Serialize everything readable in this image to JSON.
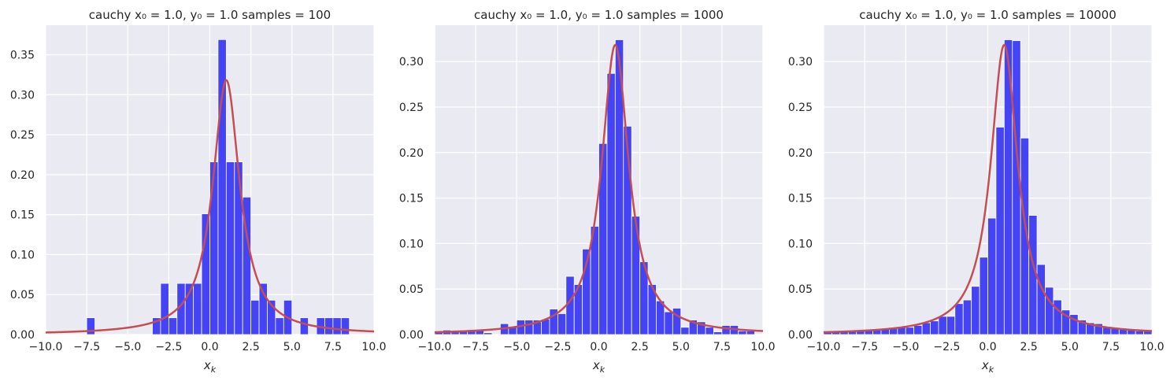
{
  "figure": {
    "background": "#ffffff",
    "axes_background": "#EAEAF2",
    "grid_color": "#ffffff",
    "bar_color": "#4444F5",
    "curve_color": "#C44E52"
  },
  "chart_data": [
    {
      "type": "bar",
      "title": "cauchy x₀ = 1.0, y₀ = 1.0  samples = 100",
      "xlabel": "x_k",
      "ylabel": "",
      "xlim": [
        -10,
        10
      ],
      "ylim": [
        0,
        0.387
      ],
      "grid": true,
      "xticks": [
        "−10.0",
        "−7.5",
        "−5.0",
        "−2.5",
        "0.0",
        "2.5",
        "5.0",
        "7.5",
        "10.0"
      ],
      "xtick_values": [
        -10,
        -7.5,
        -5,
        -2.5,
        0,
        2.5,
        5,
        7.5,
        10
      ],
      "yticks": [
        "0.00",
        "0.05",
        "0.10",
        "0.15",
        "0.20",
        "0.25",
        "0.30",
        "0.35"
      ],
      "ytick_values": [
        0,
        0.05,
        0.1,
        0.15,
        0.2,
        0.25,
        0.3,
        0.35
      ],
      "bin_width": 0.5,
      "bins": [
        {
          "x": -7.5,
          "y": 0.021
        },
        {
          "x": -3.5,
          "y": 0.021
        },
        {
          "x": -3.0,
          "y": 0.064
        },
        {
          "x": -2.5,
          "y": 0.021
        },
        {
          "x": -2.0,
          "y": 0.064
        },
        {
          "x": -1.5,
          "y": 0.064
        },
        {
          "x": -1.0,
          "y": 0.064
        },
        {
          "x": -0.5,
          "y": 0.151
        },
        {
          "x": 0.0,
          "y": 0.216
        },
        {
          "x": 0.5,
          "y": 0.369
        },
        {
          "x": 1.0,
          "y": 0.216
        },
        {
          "x": 1.5,
          "y": 0.216
        },
        {
          "x": 2.0,
          "y": 0.172
        },
        {
          "x": 2.5,
          "y": 0.043
        },
        {
          "x": 3.0,
          "y": 0.064
        },
        {
          "x": 3.5,
          "y": 0.043
        },
        {
          "x": 4.0,
          "y": 0.021
        },
        {
          "x": 4.5,
          "y": 0.043
        },
        {
          "x": 5.5,
          "y": 0.021
        },
        {
          "x": 6.5,
          "y": 0.021
        },
        {
          "x": 7.0,
          "y": 0.021
        },
        {
          "x": 7.5,
          "y": 0.021
        },
        {
          "x": 8.0,
          "y": 0.021
        }
      ],
      "curve": {
        "type": "cauchy_pdf",
        "x0": 1.0,
        "gamma": 1.0
      }
    },
    {
      "type": "bar",
      "title": "cauchy x₀ = 1.0, y₀ = 1.0  samples = 1000",
      "xlabel": "x_k",
      "ylabel": "",
      "xlim": [
        -10,
        10
      ],
      "ylim": [
        0,
        0.34
      ],
      "grid": true,
      "xticks": [
        "−10.0",
        "−7.5",
        "−5.0",
        "−2.5",
        "0.0",
        "2.5",
        "5.0",
        "7.5",
        "10.0"
      ],
      "xtick_values": [
        -10,
        -7.5,
        -5,
        -2.5,
        0,
        2.5,
        5,
        7.5,
        10
      ],
      "yticks": [
        "0.00",
        "0.05",
        "0.10",
        "0.15",
        "0.20",
        "0.25",
        "0.30"
      ],
      "ytick_values": [
        0,
        0.05,
        0.1,
        0.15,
        0.2,
        0.25,
        0.3
      ],
      "bin_width": 0.5,
      "bins": [
        {
          "x": -10.0,
          "y": 0.003
        },
        {
          "x": -9.5,
          "y": 0.005
        },
        {
          "x": -9.0,
          "y": 0.003
        },
        {
          "x": -8.5,
          "y": 0.005
        },
        {
          "x": -8.0,
          "y": 0.004
        },
        {
          "x": -7.5,
          "y": 0.005
        },
        {
          "x": -7.0,
          "y": 0.002
        },
        {
          "x": -6.0,
          "y": 0.012
        },
        {
          "x": -5.5,
          "y": 0.008
        },
        {
          "x": -5.0,
          "y": 0.016
        },
        {
          "x": -4.5,
          "y": 0.016
        },
        {
          "x": -4.0,
          "y": 0.016
        },
        {
          "x": -3.5,
          "y": 0.017
        },
        {
          "x": -3.0,
          "y": 0.028
        },
        {
          "x": -2.5,
          "y": 0.023
        },
        {
          "x": -2.0,
          "y": 0.064
        },
        {
          "x": -1.5,
          "y": 0.055
        },
        {
          "x": -1.0,
          "y": 0.094
        },
        {
          "x": -0.5,
          "y": 0.119
        },
        {
          "x": 0.0,
          "y": 0.21
        },
        {
          "x": 0.5,
          "y": 0.287
        },
        {
          "x": 1.0,
          "y": 0.324
        },
        {
          "x": 1.5,
          "y": 0.229
        },
        {
          "x": 2.0,
          "y": 0.13
        },
        {
          "x": 2.5,
          "y": 0.08
        },
        {
          "x": 3.0,
          "y": 0.055
        },
        {
          "x": 3.5,
          "y": 0.037
        },
        {
          "x": 4.0,
          "y": 0.025
        },
        {
          "x": 4.5,
          "y": 0.029
        },
        {
          "x": 5.0,
          "y": 0.008
        },
        {
          "x": 5.5,
          "y": 0.016
        },
        {
          "x": 6.0,
          "y": 0.014
        },
        {
          "x": 6.5,
          "y": 0.008
        },
        {
          "x": 7.0,
          "y": 0.003
        },
        {
          "x": 7.5,
          "y": 0.01
        },
        {
          "x": 8.0,
          "y": 0.01
        },
        {
          "x": 8.5,
          "y": 0.004
        },
        {
          "x": 9.0,
          "y": 0.004
        }
      ],
      "curve": {
        "type": "cauchy_pdf",
        "x0": 1.0,
        "gamma": 1.0
      }
    },
    {
      "type": "bar",
      "title": "cauchy x₀ = 1.0, y₀ = 1.0  samples = 10000",
      "xlabel": "x_k",
      "ylabel": "",
      "xlim": [
        -10,
        10
      ],
      "ylim": [
        0,
        0.34
      ],
      "grid": true,
      "xticks": [
        "−10.0",
        "−7.5",
        "−5.0",
        "−2.5",
        "0.0",
        "2.5",
        "5.0",
        "7.5",
        "10.0"
      ],
      "xtick_values": [
        -10,
        -7.5,
        -5,
        -2.5,
        0,
        2.5,
        5,
        7.5,
        10
      ],
      "yticks": [
        "0.00",
        "0.05",
        "0.10",
        "0.15",
        "0.20",
        "0.25",
        "0.30"
      ],
      "ytick_values": [
        0,
        0.05,
        0.1,
        0.15,
        0.2,
        0.25,
        0.3
      ],
      "bin_width": 0.5,
      "bins": [
        {
          "x": -10.0,
          "y": 0.003
        },
        {
          "x": -9.5,
          "y": 0.003
        },
        {
          "x": -9.0,
          "y": 0.003
        },
        {
          "x": -8.5,
          "y": 0.004
        },
        {
          "x": -8.0,
          "y": 0.004
        },
        {
          "x": -7.5,
          "y": 0.005
        },
        {
          "x": -7.0,
          "y": 0.005
        },
        {
          "x": -6.5,
          "y": 0.006
        },
        {
          "x": -6.0,
          "y": 0.007
        },
        {
          "x": -5.5,
          "y": 0.009
        },
        {
          "x": -5.0,
          "y": 0.008
        },
        {
          "x": -4.5,
          "y": 0.01
        },
        {
          "x": -4.0,
          "y": 0.013
        },
        {
          "x": -3.5,
          "y": 0.015
        },
        {
          "x": -3.0,
          "y": 0.02
        },
        {
          "x": -2.5,
          "y": 0.02
        },
        {
          "x": -2.0,
          "y": 0.034
        },
        {
          "x": -1.5,
          "y": 0.038
        },
        {
          "x": -1.0,
          "y": 0.053
        },
        {
          "x": -0.5,
          "y": 0.085
        },
        {
          "x": 0.0,
          "y": 0.128
        },
        {
          "x": 0.5,
          "y": 0.228
        },
        {
          "x": 1.0,
          "y": 0.324
        },
        {
          "x": 1.5,
          "y": 0.323
        },
        {
          "x": 2.0,
          "y": 0.216
        },
        {
          "x": 2.5,
          "y": 0.131
        },
        {
          "x": 3.0,
          "y": 0.077
        },
        {
          "x": 3.5,
          "y": 0.052
        },
        {
          "x": 4.0,
          "y": 0.038
        },
        {
          "x": 4.5,
          "y": 0.027
        },
        {
          "x": 5.0,
          "y": 0.022
        },
        {
          "x": 5.5,
          "y": 0.016
        },
        {
          "x": 6.0,
          "y": 0.013
        },
        {
          "x": 6.5,
          "y": 0.012
        },
        {
          "x": 7.0,
          "y": 0.009
        },
        {
          "x": 7.5,
          "y": 0.007
        },
        {
          "x": 8.0,
          "y": 0.007
        },
        {
          "x": 8.5,
          "y": 0.006
        },
        {
          "x": 9.0,
          "y": 0.004
        },
        {
          "x": 9.5,
          "y": 0.004
        }
      ],
      "curve": {
        "type": "cauchy_pdf",
        "x0": 1.0,
        "gamma": 1.0
      }
    }
  ]
}
